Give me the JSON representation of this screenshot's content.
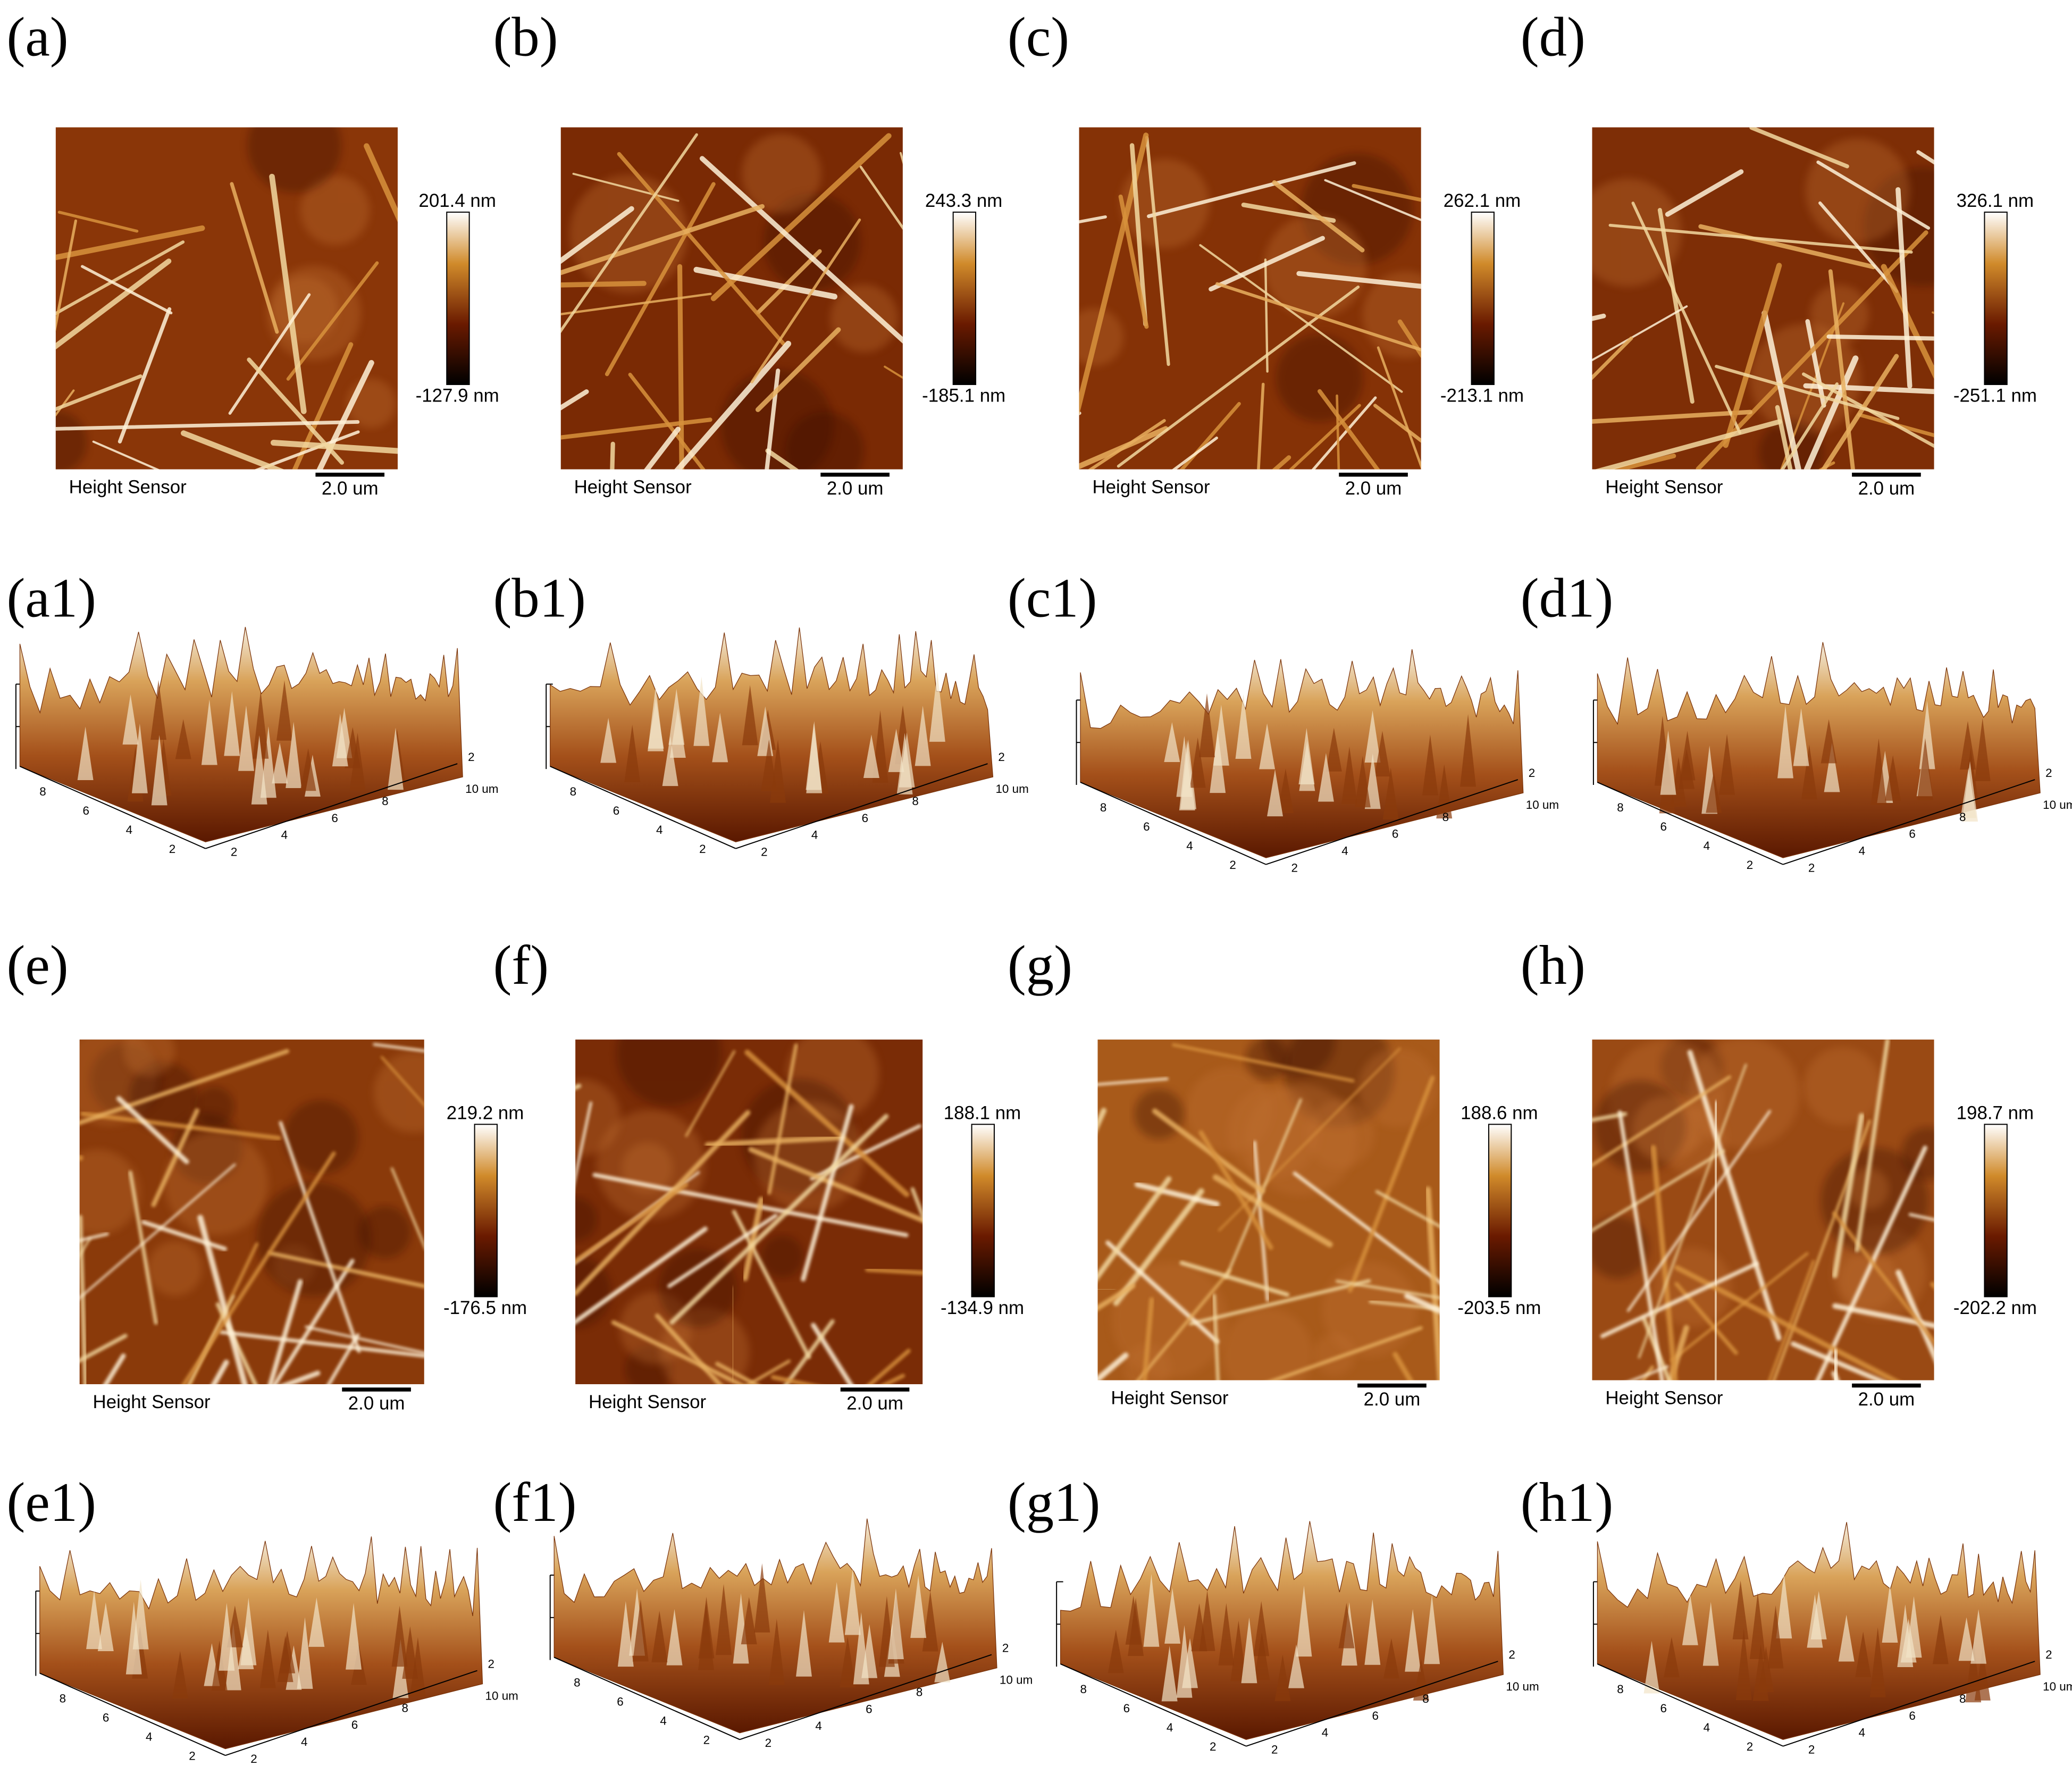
{
  "panels_2d": [
    {
      "label": "(a)",
      "max": "201.4 nm",
      "min": "-127.9 nm",
      "sensor": "Height Sensor",
      "scale": "2.0 um"
    },
    {
      "label": "(b)",
      "max": "243.3 nm",
      "min": "-185.1 nm",
      "sensor": "Height Sensor",
      "scale": "2.0 um"
    },
    {
      "label": "(c)",
      "max": "262.1 nm",
      "min": "-213.1 nm",
      "sensor": "Height Sensor",
      "scale": "2.0 um"
    },
    {
      "label": "(d)",
      "max": "326.1 nm",
      "min": "-251.1 nm",
      "sensor": "Height Sensor",
      "scale": "2.0 um"
    },
    {
      "label": "(e)",
      "max": "219.2 nm",
      "min": "-176.5 nm",
      "sensor": "Height Sensor",
      "scale": "2.0 um"
    },
    {
      "label": "(f)",
      "max": "188.1 nm",
      "min": "-134.9 nm",
      "sensor": "Height Sensor",
      "scale": "2.0 um"
    },
    {
      "label": "(g)",
      "max": "188.6 nm",
      "min": "-203.5 nm",
      "sensor": "Height Sensor",
      "scale": "2.0 um"
    },
    {
      "label": "(h)",
      "max": "198.7 nm",
      "min": "-202.2 nm",
      "sensor": "Height Sensor",
      "scale": "2.0 um"
    }
  ],
  "panels_3d": [
    {
      "label": "(a1)"
    },
    {
      "label": "(b1)"
    },
    {
      "label": "(c1)"
    },
    {
      "label": "(d1)"
    },
    {
      "label": "(e1)"
    },
    {
      "label": "(f1)"
    },
    {
      "label": "(g1)"
    },
    {
      "label": "(h1)"
    }
  ],
  "axis_3d": {
    "left_ticks": [
      "8",
      "6",
      "4",
      "2"
    ],
    "front_ticks": [
      "2",
      "4",
      "6",
      "8"
    ],
    "right_ticks": [
      "2",
      "10 um"
    ]
  }
}
